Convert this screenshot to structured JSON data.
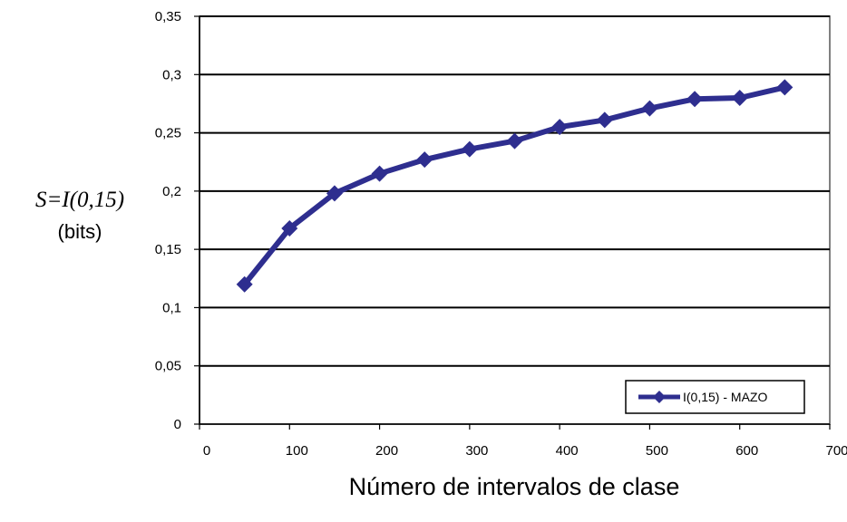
{
  "chart_data": {
    "type": "line",
    "title": "",
    "xlabel": "Número de intervalos de clase",
    "ylabel": "S=I(0,15)",
    "ylabel_unit": "(bits)",
    "xlim": [
      0,
      700
    ],
    "ylim": [
      0,
      0.35
    ],
    "x_ticks": [
      "0",
      "100",
      "200",
      "300",
      "400",
      "500",
      "600",
      "700"
    ],
    "y_ticks": [
      "0",
      "0,05",
      "0,1",
      "0,15",
      "0,2",
      "0,25",
      "0,3",
      "0,35"
    ],
    "grid": "horizontal",
    "legend_position": "bottom-right",
    "series": [
      {
        "name": "I(0,15) - MAZO",
        "color": "#2E2E8F",
        "marker": "diamond",
        "x": [
          50,
          100,
          150,
          200,
          250,
          300,
          350,
          400,
          450,
          500,
          550,
          600,
          650
        ],
        "y": [
          0.12,
          0.168,
          0.198,
          0.215,
          0.227,
          0.236,
          0.243,
          0.255,
          0.261,
          0.271,
          0.279,
          0.28,
          0.289
        ]
      }
    ]
  }
}
